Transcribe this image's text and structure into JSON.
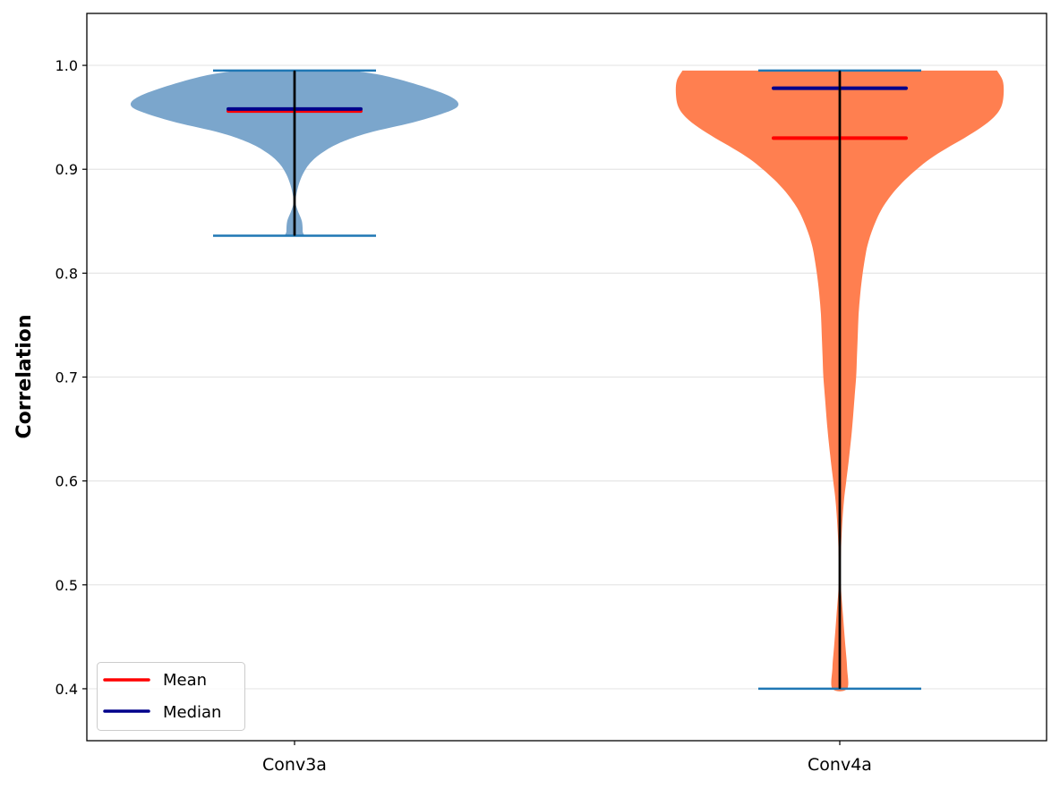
{
  "chart_data": {
    "type": "violin",
    "title": "",
    "xlabel": "",
    "ylabel": "Correlation",
    "ylim": [
      0.35,
      1.05
    ],
    "yticks": [
      0.4,
      0.5,
      0.6,
      0.7,
      0.8,
      0.9,
      1.0
    ],
    "ytick_labels": [
      "0.4",
      "0.5",
      "0.6",
      "0.7",
      "0.8",
      "0.9",
      "1.0"
    ],
    "grid": "y",
    "categories": [
      "Conv3a",
      "Conv4a"
    ],
    "legend": {
      "position": "lower left",
      "entries": [
        {
          "label": "Mean",
          "color": "#ff0000"
        },
        {
          "label": "Median",
          "color": "#00008b"
        }
      ]
    },
    "series": [
      {
        "name": "Conv3a",
        "color": "#7ba6cc",
        "min": 0.836,
        "max": 0.995,
        "mean": 0.956,
        "median": 0.958,
        "density_profile": [
          [
            0.995,
            0.35
          ],
          [
            0.99,
            0.55
          ],
          [
            0.98,
            0.78
          ],
          [
            0.97,
            0.95
          ],
          [
            0.962,
            1.0
          ],
          [
            0.955,
            0.93
          ],
          [
            0.945,
            0.72
          ],
          [
            0.935,
            0.45
          ],
          [
            0.925,
            0.27
          ],
          [
            0.915,
            0.16
          ],
          [
            0.905,
            0.09
          ],
          [
            0.895,
            0.05
          ],
          [
            0.885,
            0.025
          ],
          [
            0.875,
            0.01
          ],
          [
            0.868,
            0.005
          ],
          [
            0.86,
            0.02
          ],
          [
            0.85,
            0.045
          ],
          [
            0.84,
            0.05
          ],
          [
            0.836,
            0.05
          ]
        ]
      },
      {
        "name": "Conv4a",
        "color": "#ff7f50",
        "min": 0.4,
        "max": 0.995,
        "mean": 0.93,
        "median": 0.978,
        "density_profile": [
          [
            0.995,
            0.96
          ],
          [
            0.985,
            0.995
          ],
          [
            0.972,
            1.0
          ],
          [
            0.96,
            0.985
          ],
          [
            0.95,
            0.94
          ],
          [
            0.94,
            0.86
          ],
          [
            0.93,
            0.76
          ],
          [
            0.92,
            0.65
          ],
          [
            0.91,
            0.55
          ],
          [
            0.9,
            0.47
          ],
          [
            0.89,
            0.4
          ],
          [
            0.88,
            0.34
          ],
          [
            0.87,
            0.29
          ],
          [
            0.86,
            0.25
          ],
          [
            0.85,
            0.22
          ],
          [
            0.84,
            0.195
          ],
          [
            0.83,
            0.175
          ],
          [
            0.82,
            0.16
          ],
          [
            0.8,
            0.14
          ],
          [
            0.78,
            0.125
          ],
          [
            0.76,
            0.115
          ],
          [
            0.74,
            0.11
          ],
          [
            0.72,
            0.105
          ],
          [
            0.7,
            0.1
          ],
          [
            0.68,
            0.09
          ],
          [
            0.65,
            0.075
          ],
          [
            0.62,
            0.055
          ],
          [
            0.6,
            0.04
          ],
          [
            0.58,
            0.025
          ],
          [
            0.55,
            0.012
          ],
          [
            0.52,
            0.005
          ],
          [
            0.5,
            0.006
          ],
          [
            0.47,
            0.02
          ],
          [
            0.44,
            0.035
          ],
          [
            0.42,
            0.045
          ],
          [
            0.4,
            0.045
          ]
        ]
      }
    ]
  },
  "axes": {
    "ylabel": "Correlation",
    "xtick_labels": [
      "Conv3a",
      "Conv4a"
    ],
    "ytick_labels": [
      "0.4",
      "0.5",
      "0.6",
      "0.7",
      "0.8",
      "0.9",
      "1.0"
    ]
  },
  "legend": {
    "mean_label": "Mean",
    "median_label": "Median"
  },
  "colors": {
    "mean": "#ff0000",
    "median": "#00008b",
    "cap": "#1f77b4",
    "whisker": "#000000",
    "grid": "#e6e6e6",
    "conv3a_fill": "#7ba6cc",
    "conv4a_fill": "#ff7f50"
  }
}
